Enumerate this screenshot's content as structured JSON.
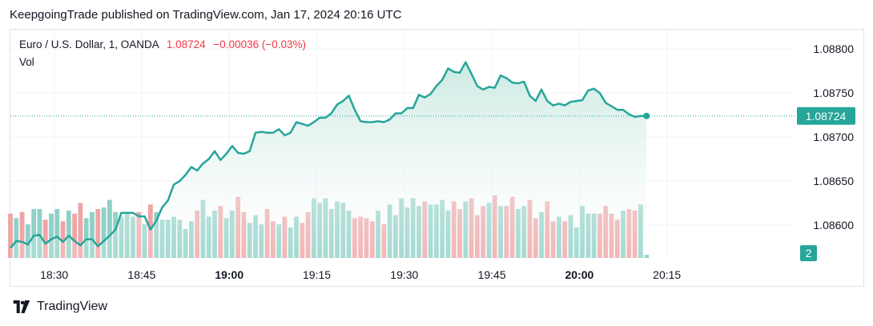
{
  "header": {
    "published_text": "KeepgoingTrade published on TradingView.com, Jan 17, 2024 20:16 UTC"
  },
  "legend": {
    "symbol": "Euro / U.S. Dollar, 1, OANDA",
    "price": "1.08724",
    "change": "−0.00036 (−0.03%)",
    "vol_label": "Vol"
  },
  "footer": {
    "brand": "TradingView"
  },
  "colors": {
    "line": "#26a69a",
    "area_top": "#c8e8e1",
    "up_volume": "#8fd1c6",
    "down_volume": "#efa4a6",
    "grid": "#f0f3fa",
    "axis_text": "#131722"
  },
  "chart_data": {
    "type": "line",
    "title": "Euro / U.S. Dollar, 1, OANDA",
    "y_ticks": [
      "1.08800",
      "1.08750",
      "1.08700",
      "1.08650",
      "1.08600"
    ],
    "y_tick_values": [
      1.088,
      1.0875,
      1.087,
      1.0865,
      1.086
    ],
    "ylim": [
      1.08551,
      1.08822
    ],
    "x_ticks": [
      {
        "label": "18:30",
        "minute": 1110,
        "bold": false
      },
      {
        "label": "18:45",
        "minute": 1125,
        "bold": false
      },
      {
        "label": "19:00",
        "minute": 1140,
        "bold": true
      },
      {
        "label": "19:15",
        "minute": 1155,
        "bold": false
      },
      {
        "label": "19:30",
        "minute": 1170,
        "bold": false
      },
      {
        "label": "19:45",
        "minute": 1185,
        "bold": false
      },
      {
        "label": "20:00",
        "minute": 1200,
        "bold": true
      },
      {
        "label": "20:15",
        "minute": 1215,
        "bold": false
      }
    ],
    "xlim_minutes": [
      1102.5,
      1237
    ],
    "last_price_label": "1.08724",
    "last_price_value": 1.08724,
    "last_volume_label": "2",
    "series": [
      {
        "name": "EURUSD",
        "start_minute": 1102.5,
        "step_minutes": 1,
        "values": [
          1.08574,
          1.08582,
          1.08581,
          1.08578,
          1.08588,
          1.08589,
          1.08579,
          1.08584,
          1.08587,
          1.08581,
          1.08588,
          1.08582,
          1.08577,
          1.08584,
          1.08584,
          1.08576,
          1.08582,
          1.08588,
          1.08595,
          1.08614,
          1.08614,
          1.08614,
          1.0861,
          1.0861,
          1.08595,
          1.08605,
          1.0862,
          1.08628,
          1.08646,
          1.0865,
          1.08657,
          1.08666,
          1.08662,
          1.0867,
          1.08675,
          1.08684,
          1.08674,
          1.08681,
          1.0869,
          1.08682,
          1.08681,
          1.08684,
          1.08705,
          1.08706,
          1.08705,
          1.08705,
          1.08709,
          1.08702,
          1.08705,
          1.08717,
          1.08715,
          1.08713,
          1.08717,
          1.08722,
          1.08722,
          1.08727,
          1.08737,
          1.08741,
          1.08747,
          1.08731,
          1.08718,
          1.08717,
          1.08717,
          1.08718,
          1.08717,
          1.0872,
          1.08727,
          1.08727,
          1.08733,
          1.08733,
          1.08748,
          1.08745,
          1.08749,
          1.08758,
          1.08765,
          1.08778,
          1.08774,
          1.08773,
          1.08785,
          1.08772,
          1.08758,
          1.08754,
          1.08757,
          1.08756,
          1.0877,
          1.08767,
          1.08762,
          1.08761,
          1.08763,
          1.08747,
          1.08741,
          1.08754,
          1.08741,
          1.08736,
          1.08738,
          1.08736,
          1.0874,
          1.08741,
          1.08742,
          1.08753,
          1.08755,
          1.0875,
          1.08739,
          1.08735,
          1.08731,
          1.08731,
          1.08726,
          1.08723,
          1.08724,
          1.08724
        ]
      }
    ],
    "volume": {
      "start_minute": 1102.5,
      "step_minutes": 1,
      "ylim": [
        0,
        43
      ],
      "values": [
        29,
        26,
        30,
        22,
        32,
        32,
        25,
        29,
        32,
        24,
        31,
        29,
        36,
        26,
        30,
        32,
        33,
        38,
        30,
        27,
        30,
        27,
        30,
        22,
        35,
        30,
        25,
        25,
        27,
        25,
        19,
        24,
        31,
        38,
        27,
        31,
        34,
        26,
        31,
        40,
        30,
        23,
        28,
        22,
        32,
        24,
        22,
        27,
        20,
        27,
        23,
        30,
        39,
        36,
        39,
        32,
        37,
        36,
        31,
        26,
        27,
        26,
        24,
        31,
        22,
        35,
        28,
        39,
        33,
        39,
        34,
        37,
        35,
        35,
        38,
        31,
        37,
        32,
        37,
        39,
        28,
        34,
        36,
        41,
        34,
        34,
        40,
        32,
        34,
        38,
        26,
        30,
        37,
        24,
        27,
        24,
        28,
        20,
        34,
        29,
        29,
        29,
        34,
        29,
        25,
        31,
        32,
        31,
        35,
        2
      ],
      "directions": [
        "d",
        "u",
        "d",
        "u",
        "u",
        "u",
        "d",
        "u",
        "u",
        "d",
        "u",
        "d",
        "d",
        "u",
        "u",
        "d",
        "u",
        "u",
        "u",
        "u",
        "u",
        "u",
        "d",
        "u",
        "d",
        "u",
        "u",
        "u",
        "u",
        "u",
        "u",
        "u",
        "d",
        "u",
        "u",
        "u",
        "d",
        "u",
        "u",
        "d",
        "d",
        "u",
        "u",
        "u",
        "d",
        "d",
        "u",
        "d",
        "u",
        "u",
        "d",
        "d",
        "u",
        "u",
        "u",
        "u",
        "u",
        "u",
        "u",
        "d",
        "d",
        "d",
        "d",
        "u",
        "d",
        "u",
        "u",
        "u",
        "u",
        "u",
        "u",
        "d",
        "u",
        "u",
        "u",
        "u",
        "d",
        "d",
        "u",
        "d",
        "d",
        "d",
        "u",
        "d",
        "u",
        "d",
        "d",
        "u",
        "u",
        "d",
        "d",
        "u",
        "d",
        "d",
        "u",
        "d",
        "u",
        "u",
        "u",
        "u",
        "u",
        "d",
        "d",
        "d",
        "d",
        "u",
        "d",
        "d",
        "u",
        "u"
      ]
    }
  }
}
